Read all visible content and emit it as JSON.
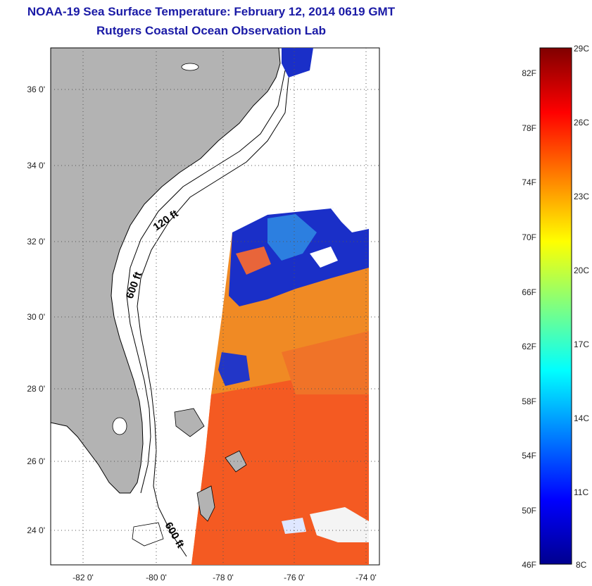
{
  "header": {
    "title": "NOAA-19 Sea Surface Temperature:  February 12, 2014 0619 GMT",
    "subtitle": "Rutgers Coastal Ocean Observation Lab"
  },
  "map": {
    "latitude_ticks": [
      "36 0'",
      "34 0'",
      "32 0'",
      "30 0'",
      "28 0'",
      "26 0'",
      "24 0'"
    ],
    "longitude_ticks": [
      "-82 0'",
      "-80 0'",
      "-78 0'",
      "-76 0'",
      "-74 0'"
    ],
    "contour_labels": [
      "120 ft",
      "600 ft",
      "600 ft"
    ],
    "land_color": "#b3b3b3",
    "gridlines": "dotted"
  },
  "colorbar": {
    "fahrenheit_labels": [
      "82F",
      "78F",
      "74F",
      "70F",
      "66F",
      "62F",
      "58F",
      "54F",
      "50F",
      "46F"
    ],
    "celsius_labels": [
      "29C",
      "26C",
      "23C",
      "20C",
      "17C",
      "14C",
      "11C",
      "8C"
    ],
    "colormap": "jet",
    "min_celsius": 8,
    "max_celsius": 29
  }
}
